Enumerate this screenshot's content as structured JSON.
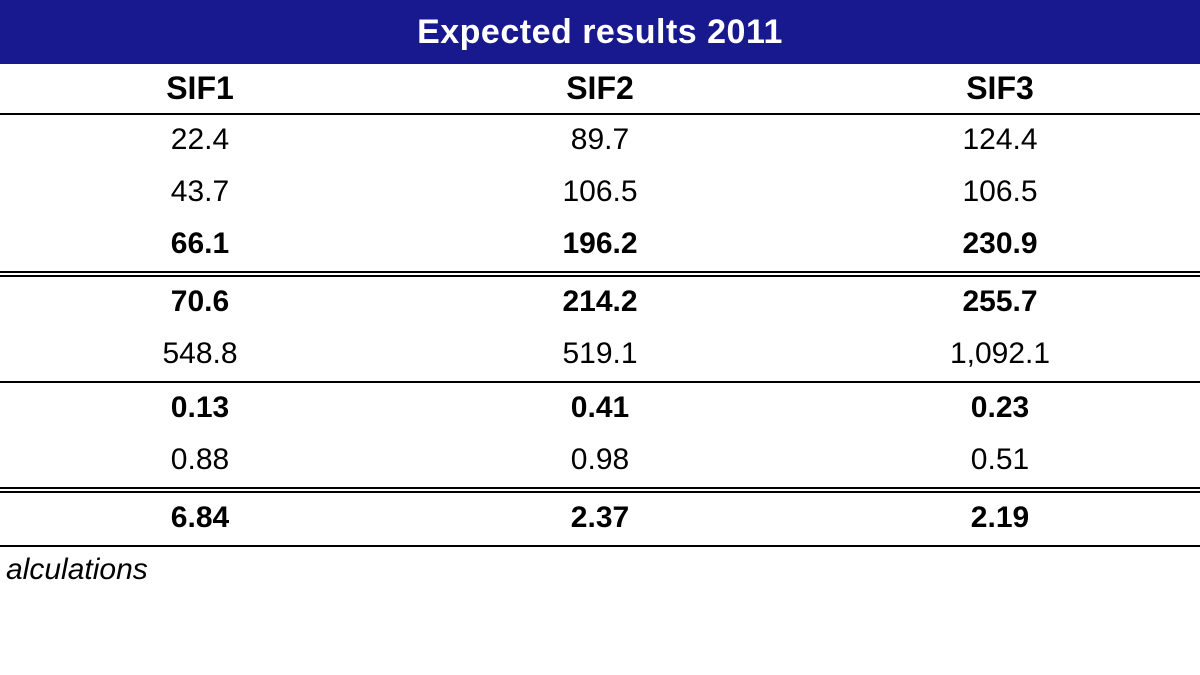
{
  "table": {
    "type": "table",
    "title": "Expected results 2011",
    "title_bg": "#18188f",
    "title_fg": "#ffffff",
    "title_fontsize": 34,
    "body_fontsize": 30,
    "header_fontsize": 32,
    "text_color": "#000000",
    "background_color": "#ffffff",
    "border_color": "#000000",
    "column_headers": [
      "SIF1",
      "SIF2",
      "SIF3"
    ],
    "column_widths_pct": [
      33.33,
      33.33,
      33.33
    ],
    "column_align": [
      "center",
      "center",
      "center"
    ],
    "rows": [
      {
        "values": [
          "22.4",
          "89.7",
          "124.4"
        ],
        "bold": false,
        "border_top": "single",
        "border_bottom": "none"
      },
      {
        "values": [
          "43.7",
          "106.5",
          "106.5"
        ],
        "bold": false,
        "border_top": "none",
        "border_bottom": "none"
      },
      {
        "values": [
          "66.1",
          "196.2",
          "230.9"
        ],
        "bold": true,
        "border_top": "none",
        "border_bottom": "double"
      },
      {
        "values": [
          "70.6",
          "214.2",
          "255.7"
        ],
        "bold": true,
        "border_top": "none",
        "border_bottom": "none"
      },
      {
        "values": [
          "548.8",
          "519.1",
          "1,092.1"
        ],
        "bold": false,
        "border_top": "none",
        "border_bottom": "single"
      },
      {
        "values": [
          "0.13",
          "0.41",
          "0.23"
        ],
        "bold": true,
        "border_top": "none",
        "border_bottom": "none"
      },
      {
        "values": [
          "0.88",
          "0.98",
          "0.51"
        ],
        "bold": false,
        "border_top": "none",
        "border_bottom": "double"
      },
      {
        "values": [
          "6.84",
          "2.37",
          "2.19"
        ],
        "bold": true,
        "border_top": "none",
        "border_bottom": "single"
      }
    ],
    "footnote_fragment": "alculations"
  }
}
